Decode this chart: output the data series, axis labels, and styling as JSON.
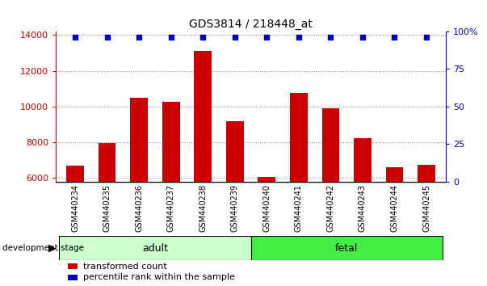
{
  "title": "GDS3814 / 218448_at",
  "samples": [
    "GSM440234",
    "GSM440235",
    "GSM440236",
    "GSM440237",
    "GSM440238",
    "GSM440239",
    "GSM440240",
    "GSM440241",
    "GSM440242",
    "GSM440243",
    "GSM440244",
    "GSM440245"
  ],
  "transformed_counts": [
    6700,
    7950,
    10500,
    10250,
    13100,
    9200,
    6050,
    10750,
    9900,
    8250,
    6600,
    6750
  ],
  "percentile_ranks": [
    99,
    99,
    99,
    99,
    99,
    99,
    99,
    99,
    99,
    99,
    99,
    99
  ],
  "groups": [
    {
      "label": "adult",
      "start": 0,
      "end": 5,
      "color": "#ccffcc"
    },
    {
      "label": "fetal",
      "start": 6,
      "end": 11,
      "color": "#44ee44"
    }
  ],
  "ylim_left": [
    5800,
    14200
  ],
  "ylim_right": [
    0,
    100
  ],
  "yticks_left": [
    6000,
    8000,
    10000,
    12000,
    14000
  ],
  "yticks_right": [
    0,
    25,
    50,
    75,
    100
  ],
  "bar_color": "#cc0000",
  "dot_color": "#0000cc",
  "left_tick_color": "#cc0000",
  "right_tick_color": "#0000cc",
  "background_color": "#ffffff",
  "tick_label_bg": "#cccccc",
  "dev_stage_label": "development stage",
  "legend_items": [
    {
      "color": "#cc0000",
      "label": "transformed count"
    },
    {
      "color": "#0000cc",
      "label": "percentile rank within the sample"
    }
  ]
}
